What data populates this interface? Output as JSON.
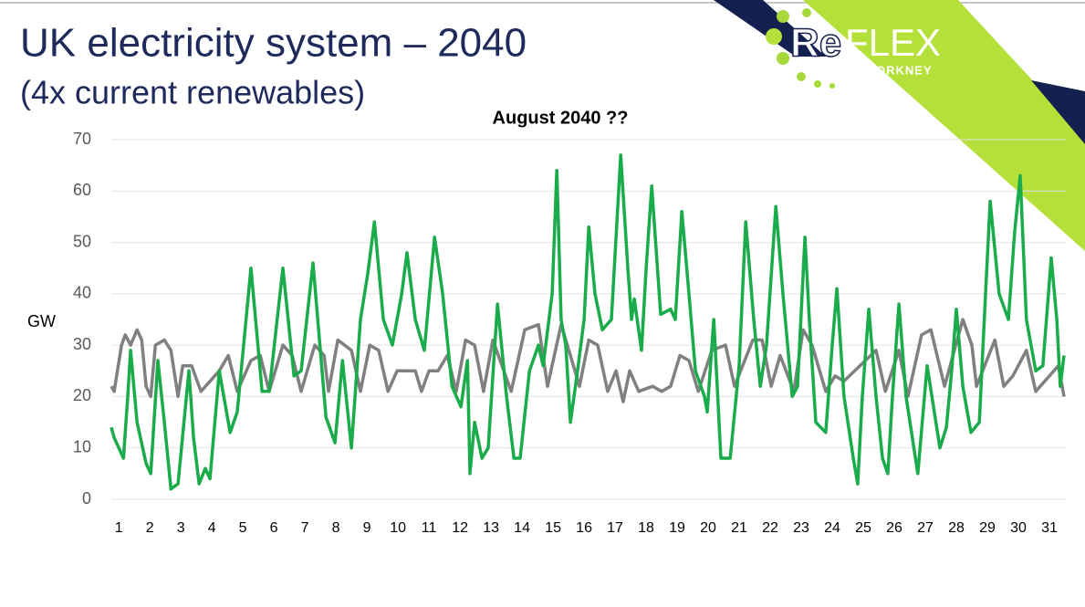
{
  "slide": {
    "title": "UK electricity system – 2040",
    "subtitle": "(4x current renewables)"
  },
  "logo": {
    "prefix": "Re",
    "name": "FLEX",
    "place": "ORKNEY"
  },
  "chart_data": {
    "type": "line",
    "title": "August 2040 ??",
    "y_label": "GW",
    "xlim": [
      0.76,
      31.53
    ],
    "xticks": [
      1,
      2,
      3,
      4,
      5,
      6,
      7,
      8,
      9,
      10,
      11,
      12,
      13,
      14,
      15,
      16,
      17,
      18,
      19,
      20,
      21,
      22,
      23,
      24,
      25,
      26,
      27,
      28,
      29,
      30,
      31
    ],
    "ylim": [
      0,
      70
    ],
    "yticks": [
      0,
      10,
      20,
      30,
      40,
      50,
      60,
      70
    ],
    "grid": true,
    "series": [
      {
        "color": "#808080",
        "x": [
          0.76,
          0.85,
          1.09,
          1.21,
          1.38,
          1.59,
          1.74,
          1.88,
          2.03,
          2.18,
          2.47,
          2.68,
          2.91,
          3.06,
          3.35,
          3.65,
          4.24,
          4.53,
          4.82,
          5.26,
          5.56,
          5.85,
          6.29,
          6.59,
          6.88,
          7.32,
          7.62,
          7.76,
          8.06,
          8.5,
          8.79,
          9.09,
          9.38,
          9.68,
          9.97,
          10.56,
          10.76,
          11.0,
          11.29,
          11.59,
          11.88,
          12.18,
          12.47,
          12.76,
          13.06,
          13.65,
          14.09,
          14.53,
          14.82,
          15.26,
          15.56,
          15.85,
          16.15,
          16.44,
          16.76,
          17.03,
          17.26,
          17.47,
          17.76,
          18.21,
          18.5,
          18.79,
          19.09,
          19.38,
          19.68,
          20.12,
          20.56,
          20.85,
          21.44,
          21.74,
          22.03,
          22.32,
          22.76,
          23.06,
          23.35,
          23.79,
          24.09,
          24.38,
          25.41,
          25.71,
          26.15,
          26.44,
          26.88,
          27.18,
          27.62,
          28.21,
          28.5,
          28.65,
          29.24,
          29.53,
          29.82,
          30.26,
          30.56,
          31.0,
          31.29,
          31.47
        ],
        "values": [
          22,
          21,
          30,
          32,
          30,
          33,
          31,
          22,
          20,
          30,
          31,
          29,
          20,
          26,
          26,
          21,
          25,
          28,
          21,
          27,
          28,
          21,
          30,
          28,
          21,
          30,
          28,
          21,
          31,
          29,
          21,
          30,
          29,
          21,
          25,
          25,
          21,
          25,
          25,
          28,
          21,
          31,
          30,
          21,
          31,
          21,
          33,
          34,
          22,
          34,
          28,
          22,
          31,
          30,
          21,
          25,
          19,
          25,
          21,
          22,
          21,
          22,
          28,
          27,
          21,
          29,
          30,
          22,
          31,
          31,
          22,
          28,
          21,
          33,
          30,
          21,
          24,
          23,
          29,
          21,
          29,
          20,
          32,
          33,
          22,
          35,
          30,
          22,
          31,
          22,
          24,
          29,
          21,
          24,
          26,
          20
        ]
      },
      {
        "color": "#1aab4a",
        "x": [
          0.76,
          0.85,
          1.15,
          1.29,
          1.38,
          1.59,
          1.88,
          2.03,
          2.26,
          2.47,
          2.68,
          2.91,
          3.26,
          3.41,
          3.59,
          3.79,
          3.94,
          4.24,
          4.59,
          4.82,
          5.26,
          5.62,
          5.85,
          6.29,
          6.65,
          6.88,
          7.26,
          7.68,
          7.97,
          8.21,
          8.5,
          8.79,
          9.03,
          9.24,
          9.53,
          9.82,
          10.12,
          10.29,
          10.56,
          10.85,
          11.18,
          11.44,
          11.74,
          12.03,
          12.24,
          12.32,
          12.47,
          12.71,
          12.91,
          13.21,
          13.5,
          13.74,
          13.94,
          14.24,
          14.53,
          14.68,
          14.97,
          15.12,
          15.26,
          15.41,
          15.56,
          15.79,
          16.0,
          16.15,
          16.35,
          16.59,
          16.88,
          17.18,
          17.41,
          17.53,
          17.62,
          17.85,
          18.0,
          18.18,
          18.47,
          18.79,
          18.94,
          19.15,
          19.38,
          19.59,
          19.88,
          19.97,
          20.18,
          20.41,
          20.71,
          21.0,
          21.21,
          21.47,
          21.68,
          21.88,
          22.18,
          22.41,
          22.71,
          22.88,
          23.12,
          23.26,
          23.47,
          23.79,
          24.0,
          24.15,
          24.38,
          24.68,
          24.82,
          24.97,
          25.18,
          25.41,
          25.62,
          25.79,
          25.94,
          26.15,
          26.38,
          26.76,
          27.06,
          27.47,
          27.68,
          27.85,
          28.0,
          28.21,
          28.47,
          28.74,
          28.94,
          29.09,
          29.38,
          29.68,
          29.88,
          30.06,
          30.26,
          30.56,
          30.79,
          31.06,
          31.24,
          31.35,
          31.47
        ],
        "values": [
          14,
          12,
          8,
          20,
          29,
          15,
          7,
          5,
          27,
          15,
          2,
          3,
          25,
          12,
          3,
          6,
          4,
          25,
          13,
          17,
          45,
          21,
          21,
          45,
          24,
          25,
          46,
          16,
          11,
          27,
          10,
          35,
          44,
          54,
          35,
          30,
          40,
          48,
          35,
          29,
          51,
          40,
          22,
          18,
          27,
          5,
          15,
          8,
          10,
          38,
          20,
          8,
          8,
          25,
          30,
          26,
          40,
          64,
          35,
          30,
          15,
          25,
          35,
          53,
          40,
          33,
          35,
          67,
          45,
          35,
          39,
          29,
          45,
          61,
          36,
          37,
          35,
          56,
          40,
          25,
          20,
          17,
          35,
          8,
          8,
          26,
          54,
          35,
          22,
          30,
          57,
          40,
          20,
          22,
          51,
          35,
          15,
          13,
          30,
          41,
          20,
          8,
          3,
          20,
          37,
          20,
          8,
          5,
          20,
          38,
          20,
          5,
          26,
          10,
          14,
          25,
          37,
          22,
          13,
          15,
          40,
          58,
          40,
          35,
          52,
          63,
          35,
          25,
          26,
          47,
          35,
          22,
          28
        ]
      }
    ]
  }
}
